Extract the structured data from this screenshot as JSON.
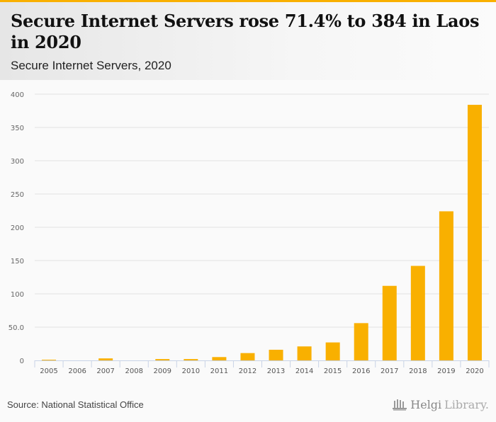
{
  "header": {
    "title": "Secure Internet Servers rose 71.4% to 384 in Laos in 2020",
    "subtitle": "Secure Internet Servers, 2020"
  },
  "footer": {
    "source": "Source: National Statistical Office",
    "logo_main": "Helgi",
    "logo_sub": "Library."
  },
  "colors": {
    "bar": "#f9b000",
    "accent": "#f9b000",
    "grid": "#e3e3e3",
    "axis": "#c8d3e6"
  },
  "chart_data": {
    "type": "bar",
    "title": "Secure Internet Servers rose 71.4% to 384 in Laos in 2020",
    "subtitle": "Secure Internet Servers, 2020",
    "xlabel": "",
    "ylabel": "",
    "categories": [
      "2005",
      "2006",
      "2007",
      "2008",
      "2009",
      "2010",
      "2011",
      "2012",
      "2013",
      "2014",
      "2015",
      "2016",
      "2017",
      "2018",
      "2019",
      "2020"
    ],
    "values": [
      1,
      0,
      3,
      0,
      2,
      2,
      5,
      11,
      16,
      21,
      27,
      56,
      112,
      142,
      224,
      384
    ],
    "ylim": [
      0,
      400
    ],
    "yticks": [
      0,
      50,
      100,
      150,
      200,
      250,
      300,
      350,
      400
    ],
    "ytick_labels": [
      "0",
      "50.0",
      "100",
      "150",
      "200",
      "250",
      "300",
      "350",
      "400"
    ],
    "grid": true,
    "legend": "none"
  }
}
